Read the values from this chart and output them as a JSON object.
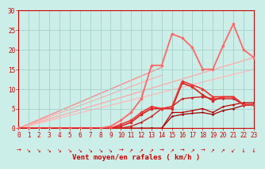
{
  "title": "",
  "xlabel": "Vent moyen/en rafales ( km/h )",
  "ylabel": "",
  "bg_color": "#cceee8",
  "grid_color": "#aad4ce",
  "x_ticks": [
    0,
    1,
    2,
    3,
    4,
    5,
    6,
    7,
    8,
    9,
    10,
    11,
    12,
    13,
    14,
    15,
    16,
    17,
    18,
    19,
    20,
    21,
    22,
    23
  ],
  "y_ticks": [
    0,
    5,
    10,
    15,
    20,
    25,
    30
  ],
  "xlim": [
    0,
    23
  ],
  "ylim": [
    0,
    30
  ],
  "linear_lines": [
    {
      "x0": 0,
      "y0": 0,
      "x1": 23,
      "y1": 18,
      "color": "#ffaaaa",
      "lw": 1.0
    },
    {
      "x0": 0,
      "y0": 0,
      "x1": 23,
      "y1": 15,
      "color": "#ffbbbb",
      "lw": 1.0
    },
    {
      "x0": 0,
      "y0": 0,
      "x1": 14,
      "y1": 15.5,
      "color": "#ff8888",
      "lw": 1.0
    },
    {
      "x0": 0,
      "y0": 0,
      "x1": 14,
      "y1": 13.5,
      "color": "#ffaaaa",
      "lw": 0.8
    }
  ],
  "series": [
    {
      "x": [
        0,
        1,
        2,
        3,
        4,
        5,
        6,
        7,
        8,
        9,
        10,
        11,
        12,
        13,
        14,
        15,
        16,
        17,
        18,
        19,
        20,
        21,
        22,
        23
      ],
      "y": [
        0,
        0,
        0,
        0,
        0,
        0,
        0,
        0,
        0,
        0,
        0,
        0,
        0,
        0,
        0,
        3,
        3.5,
        3.8,
        4,
        3.5,
        4.5,
        5,
        5.8,
        6
      ],
      "color": "#990000",
      "lw": 0.9,
      "marker": "o",
      "ms": 1.8,
      "zorder": 4
    },
    {
      "x": [
        0,
        1,
        2,
        3,
        4,
        5,
        6,
        7,
        8,
        9,
        10,
        11,
        12,
        13,
        14,
        15,
        16,
        17,
        18,
        19,
        20,
        21,
        22,
        23
      ],
      "y": [
        0,
        0,
        0,
        0,
        0,
        0,
        0,
        0,
        0,
        0,
        0,
        0,
        0,
        0,
        0,
        4,
        4,
        4.5,
        5,
        4,
        5.5,
        6,
        6.5,
        6.5
      ],
      "color": "#bb0000",
      "lw": 0.9,
      "marker": "o",
      "ms": 1.8,
      "zorder": 4
    },
    {
      "x": [
        0,
        1,
        2,
        3,
        4,
        5,
        6,
        7,
        8,
        9,
        10,
        11,
        12,
        13,
        14,
        15,
        16,
        17,
        18,
        19,
        20,
        21,
        22,
        23
      ],
      "y": [
        0,
        0,
        0,
        0,
        0,
        0,
        0,
        0,
        0,
        0,
        0,
        0.5,
        1.5,
        3,
        5,
        5.5,
        7.5,
        7.8,
        8,
        7.5,
        7.5,
        7.5,
        6,
        6
      ],
      "color": "#cc2222",
      "lw": 1.0,
      "marker": "o",
      "ms": 2.0,
      "zorder": 4
    },
    {
      "x": [
        0,
        1,
        2,
        3,
        4,
        5,
        6,
        7,
        8,
        9,
        10,
        11,
        12,
        13,
        14,
        15,
        16,
        17,
        18,
        19,
        20,
        21,
        22,
        23
      ],
      "y": [
        0,
        0,
        0,
        0,
        0,
        0,
        0,
        0,
        0,
        0,
        0.5,
        1.5,
        3.5,
        5,
        5,
        5,
        11.5,
        10.5,
        8.5,
        7,
        8,
        8,
        6,
        6
      ],
      "color": "#dd2222",
      "lw": 1.2,
      "marker": "o",
      "ms": 2.5,
      "zorder": 4
    },
    {
      "x": [
        0,
        1,
        2,
        3,
        4,
        5,
        6,
        7,
        8,
        9,
        10,
        11,
        12,
        13,
        14,
        15,
        16,
        17,
        18,
        19,
        20,
        21,
        22,
        23
      ],
      "y": [
        0,
        0,
        0,
        0,
        0,
        0,
        0,
        0,
        0,
        0,
        1,
        2,
        4,
        5.5,
        5,
        5.5,
        12,
        11,
        10,
        8,
        8,
        8,
        6,
        6
      ],
      "color": "#ee3333",
      "lw": 1.2,
      "marker": "o",
      "ms": 2.5,
      "zorder": 4
    },
    {
      "x": [
        0,
        1,
        2,
        3,
        4,
        5,
        6,
        7,
        8,
        9,
        10,
        11,
        12,
        13,
        14,
        15,
        16,
        17,
        18,
        19,
        20,
        21,
        22,
        23
      ],
      "y": [
        0,
        0,
        0,
        0,
        0,
        0,
        0,
        0,
        0,
        0.5,
        2,
        4,
        7.5,
        16,
        16,
        24,
        23,
        20.5,
        15,
        15,
        21,
        26.5,
        20,
        18
      ],
      "color": "#ff6666",
      "lw": 1.3,
      "marker": "o",
      "ms": 2.5,
      "zorder": 5
    }
  ],
  "arrow_symbols": [
    "→",
    "↘",
    "↘",
    "↘",
    "↘",
    "↘",
    "↘",
    "↘",
    "↘",
    "↘",
    "→",
    "↗",
    "↗",
    "↗",
    "→",
    "↗",
    "→",
    "↗",
    "→",
    "↗",
    "↗",
    "↙",
    "↓",
    "↓"
  ],
  "tick_color": "#cc0000",
  "label_color": "#cc0000",
  "xlabel_fontsize": 6.5,
  "tick_fontsize": 5.5,
  "arrow_fontsize": 5.0
}
